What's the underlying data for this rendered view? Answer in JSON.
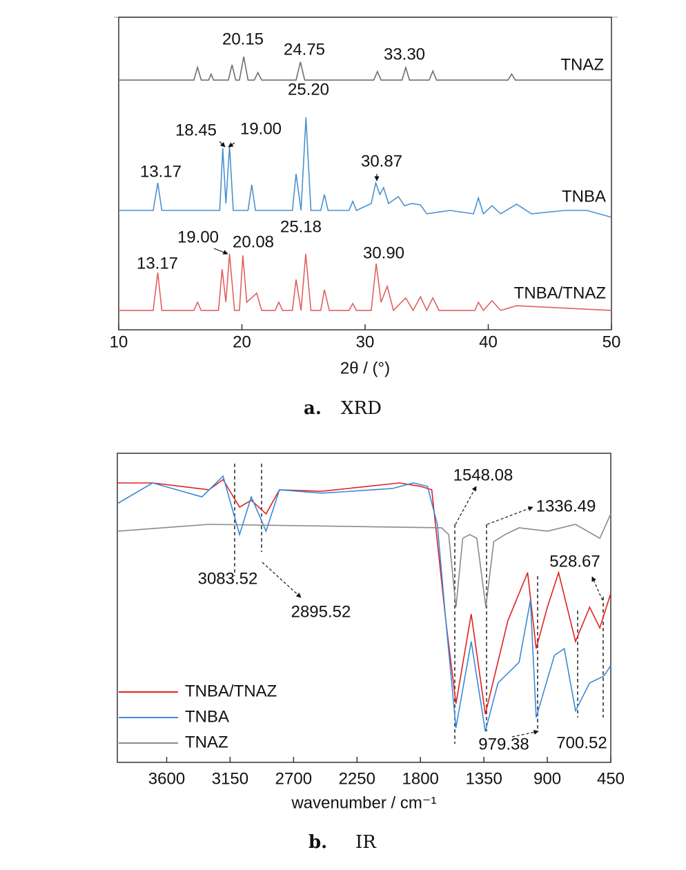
{
  "chart_data": [
    {
      "type": "line",
      "x_label": "2θ / (°)",
      "caption_label": "a.",
      "caption_title": "XRD",
      "xlim": [
        10,
        50
      ],
      "xticks": [
        10,
        20,
        30,
        40,
        50
      ],
      "ylim": [
        0,
        100
      ],
      "legend": "line-end",
      "series": [
        {
          "name": "TNAZ",
          "color": "#6e6e6e",
          "x": [
            10,
            16.1,
            16.4,
            16.7,
            17.3,
            17.5,
            17.7,
            18.9,
            19.2,
            19.5,
            19.8,
            20.15,
            20.5,
            21.0,
            21.3,
            21.6,
            24.4,
            24.75,
            25.1,
            30.7,
            31.0,
            31.3,
            33.0,
            33.3,
            33.6,
            35.2,
            35.5,
            35.8,
            41.6,
            41.9,
            42.2,
            50
          ],
          "values": [
            79.9,
            79.9,
            84.0,
            79.9,
            79.9,
            81.8,
            79.9,
            79.9,
            84.8,
            79.9,
            79.9,
            87.4,
            79.9,
            79.9,
            82.3,
            79.9,
            79.9,
            85.7,
            79.9,
            79.9,
            82.6,
            79.9,
            79.9,
            83.9,
            79.9,
            79.9,
            82.8,
            79.9,
            79.9,
            81.8,
            79.9,
            79.9
          ]
        },
        {
          "name": "TNBA",
          "color": "#4a90d0",
          "x": [
            10,
            12.8,
            13.17,
            13.5,
            18.2,
            18.45,
            18.7,
            19.0,
            19.3,
            20.5,
            20.8,
            21.1,
            24.1,
            24.4,
            24.8,
            25.2,
            25.6,
            26.4,
            26.7,
            27.0,
            28.7,
            29.0,
            29.3,
            30.5,
            30.87,
            31.2,
            31.5,
            31.9,
            32.7,
            33.2,
            33.8,
            34.5,
            35.0,
            36.9,
            38.8,
            39.2,
            39.6,
            40.3,
            41.0,
            42.3,
            43.5,
            46.2,
            48.0,
            50
          ],
          "values": [
            38.2,
            38.2,
            47.0,
            38.2,
            38.2,
            58.1,
            40.4,
            58.7,
            38.2,
            38.2,
            46.4,
            38.2,
            38.2,
            49.9,
            38.2,
            68.0,
            38.2,
            38.2,
            43.3,
            38.2,
            38.2,
            41.1,
            38.2,
            40.4,
            47.0,
            43.3,
            45.5,
            40.4,
            42.6,
            39.7,
            40.4,
            39.96,
            37.1,
            38.2,
            37.1,
            42.2,
            37.1,
            39.7,
            37.1,
            40.2,
            37.1,
            38.2,
            38.2,
            36.0
          ]
        },
        {
          "name": "TNBA/TNAZ",
          "color": "#e06060",
          "x": [
            10,
            12.8,
            13.17,
            13.5,
            16.1,
            16.4,
            16.7,
            18.1,
            18.4,
            18.7,
            19.0,
            19.4,
            19.8,
            20.08,
            20.4,
            21.2,
            21.6,
            22.7,
            23.0,
            23.3,
            24.1,
            24.4,
            24.8,
            25.18,
            25.6,
            26.4,
            26.7,
            27.1,
            28.7,
            29.0,
            29.3,
            30.5,
            30.9,
            31.3,
            31.8,
            32.3,
            33.3,
            33.9,
            34.5,
            35.0,
            35.5,
            36.0,
            38.9,
            39.2,
            39.6,
            40.3,
            41.0,
            42.3,
            50
          ],
          "values": [
            6.2,
            6.2,
            18.3,
            6.2,
            6.2,
            8.8,
            6.2,
            6.2,
            19.4,
            8.8,
            24.3,
            6.2,
            6.2,
            23.8,
            8.8,
            11.7,
            6.2,
            6.2,
            8.8,
            6.2,
            6.2,
            16.1,
            6.2,
            24.3,
            6.2,
            6.2,
            12.8,
            6.2,
            6.2,
            8.4,
            6.2,
            6.2,
            21.2,
            8.8,
            13.9,
            6.2,
            10.2,
            6.2,
            10.6,
            6.2,
            10.2,
            6.2,
            6.2,
            8.8,
            6.2,
            9.3,
            6.2,
            7.7,
            6.2
          ]
        }
      ],
      "annotations": [
        "20.15",
        "24.75",
        "33.30",
        "25.20",
        "18.45",
        "19.00",
        "13.17",
        "30.87",
        "19.00",
        "20.08",
        "25.18",
        "13.17",
        "30.90"
      ]
    },
    {
      "type": "line",
      "x_label": "wavenumber / cm⁻¹",
      "caption_label": "b.",
      "caption_title": "IR",
      "xlim": [
        3950,
        450
      ],
      "xticks": [
        3600,
        3150,
        2700,
        2250,
        1800,
        1350,
        900,
        450
      ],
      "ylim": [
        0,
        100
      ],
      "legend": "lower left",
      "series": [
        {
          "name": "TNBA/TNAZ",
          "color": "#e02020",
          "x": [
            3950,
            3700,
            3300,
            3200,
            3083,
            3000,
            2895,
            2800,
            2500,
            1950,
            1800,
            1720,
            1620,
            1548,
            1440,
            1340,
            1180,
            1040,
            979,
            900,
            820,
            700,
            600,
            528,
            450
          ],
          "values": [
            90.4,
            90.4,
            88.2,
            91.5,
            82.6,
            84.8,
            80.4,
            88.2,
            87.7,
            90.4,
            89.3,
            88.2,
            45.8,
            19.0,
            48.0,
            15.6,
            45.8,
            61.4,
            36.8,
            50.2,
            61.4,
            39.1,
            50.2,
            43.5,
            54.7
          ]
        },
        {
          "name": "TNBA",
          "color": "#3a8ad8",
          "x": [
            3950,
            3700,
            3350,
            3200,
            3083,
            3000,
            2895,
            2800,
            2500,
            2000,
            1850,
            1750,
            1680,
            1620,
            1548,
            1440,
            1340,
            1250,
            1100,
            1020,
            979,
            850,
            780,
            700,
            600,
            500,
            450
          ],
          "values": [
            83.7,
            90.4,
            85.9,
            92.6,
            73.7,
            85.9,
            74.8,
            88.2,
            87.1,
            88.6,
            90.4,
            89.3,
            77.0,
            45.8,
            11.2,
            39.1,
            10.0,
            25.7,
            32.4,
            52.5,
            14.5,
            34.6,
            36.8,
            16.7,
            25.7,
            27.9,
            31.3
          ]
        },
        {
          "name": "TNAZ",
          "color": "#8a8a8a",
          "x": [
            3950,
            3300,
            1650,
            1600,
            1548,
            1500,
            1450,
            1400,
            1336,
            1280,
            1200,
            1100,
            900,
            700,
            528,
            450
          ],
          "values": [
            74.8,
            77.0,
            75.9,
            73.7,
            50.2,
            72.5,
            73.7,
            72.5,
            50.2,
            71.4,
            73.7,
            75.9,
            74.8,
            77.0,
            72.5,
            80.4
          ]
        }
      ],
      "annotations": [
        "1548.08",
        "1336.49",
        "3083.52",
        "2895.52",
        "979.38",
        "700.52",
        "528.67"
      ]
    }
  ]
}
